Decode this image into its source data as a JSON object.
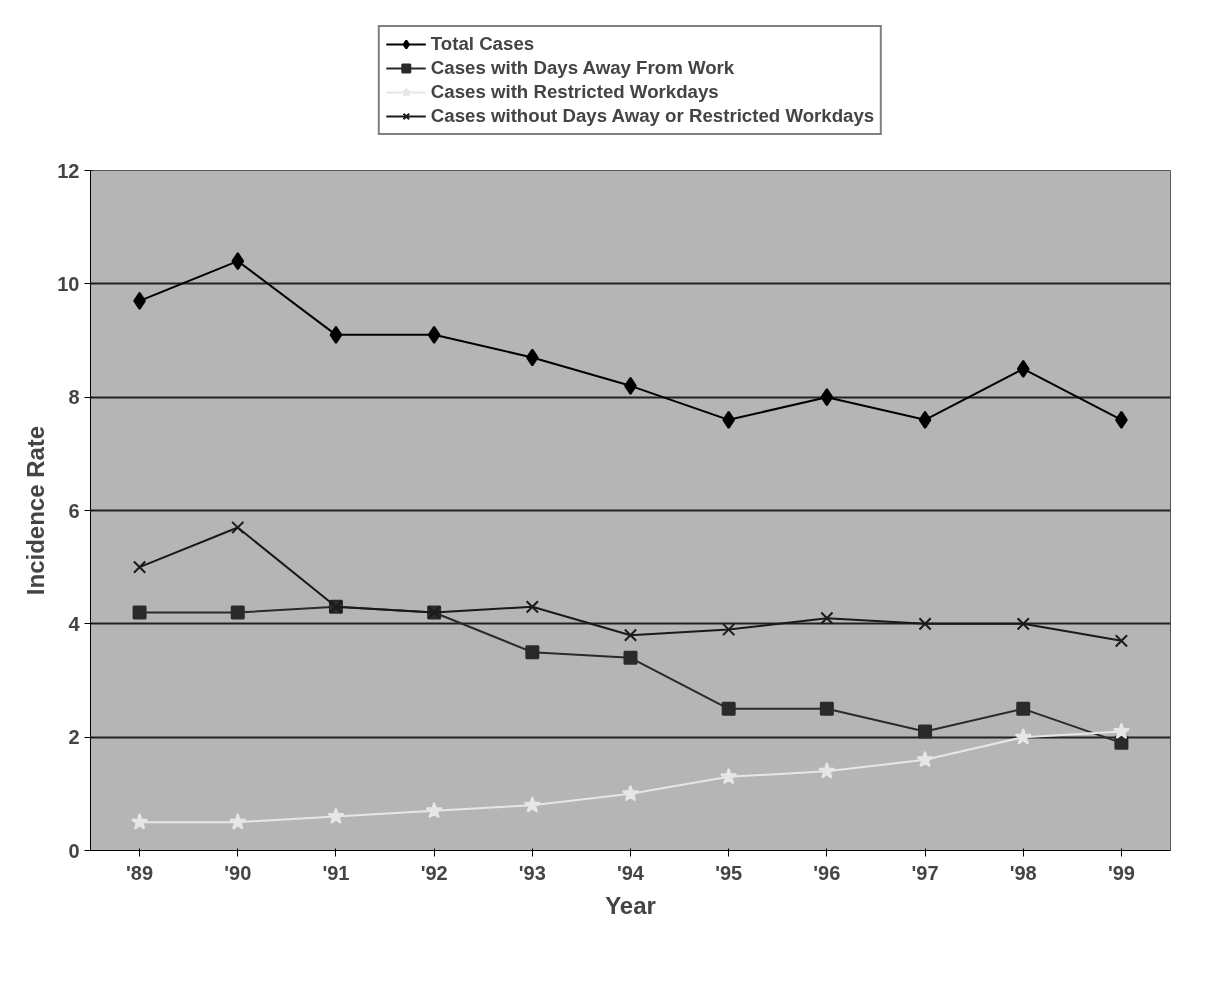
{
  "chart_data": {
    "type": "line",
    "xlabel": "Year",
    "ylabel": "Incidence Rate",
    "categories": [
      "'89",
      "'90",
      "'91",
      "'92",
      "'93",
      "'94",
      "'95",
      "'96",
      "'97",
      "'98",
      "'99"
    ],
    "series": [
      {
        "name": "Total Cases",
        "color": "#000000",
        "marker": "diamond",
        "values": [
          9.7,
          10.4,
          9.1,
          9.1,
          8.7,
          8.2,
          7.6,
          8.0,
          7.6,
          8.5,
          7.6
        ]
      },
      {
        "name": "Cases with Days Away From Work",
        "color": "#2a2a2a",
        "marker": "square",
        "values": [
          4.2,
          4.2,
          4.3,
          4.2,
          3.5,
          3.4,
          2.5,
          2.5,
          2.1,
          2.5,
          1.9
        ]
      },
      {
        "name": "Cases with Restricted Workdays",
        "color": "#e6e6e6",
        "marker": "star",
        "values": [
          0.5,
          0.5,
          0.6,
          0.7,
          0.8,
          1.0,
          1.3,
          1.4,
          1.6,
          2.0,
          2.1
        ]
      },
      {
        "name": "Cases without Days Away or Restricted Workdays",
        "color": "#1a1a1a",
        "marker": "cross",
        "values": [
          5.0,
          5.7,
          4.3,
          4.2,
          4.3,
          3.8,
          3.9,
          4.1,
          4.0,
          4.0,
          3.7
        ]
      }
    ],
    "ylim": [
      0,
      12
    ],
    "yticks": [
      0,
      2,
      4,
      6,
      8,
      10,
      12
    ],
    "grid": "y",
    "legend": "top",
    "line_style": "solid"
  }
}
